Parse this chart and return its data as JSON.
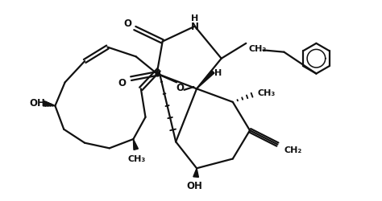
{
  "background_color": "#ffffff",
  "line_color": "#111111",
  "line_width": 1.6,
  "figsize": [
    4.74,
    2.51
  ],
  "dpi": 100,
  "xlim": [
    0.0,
    10.0
  ],
  "ylim": [
    0.0,
    5.3
  ]
}
